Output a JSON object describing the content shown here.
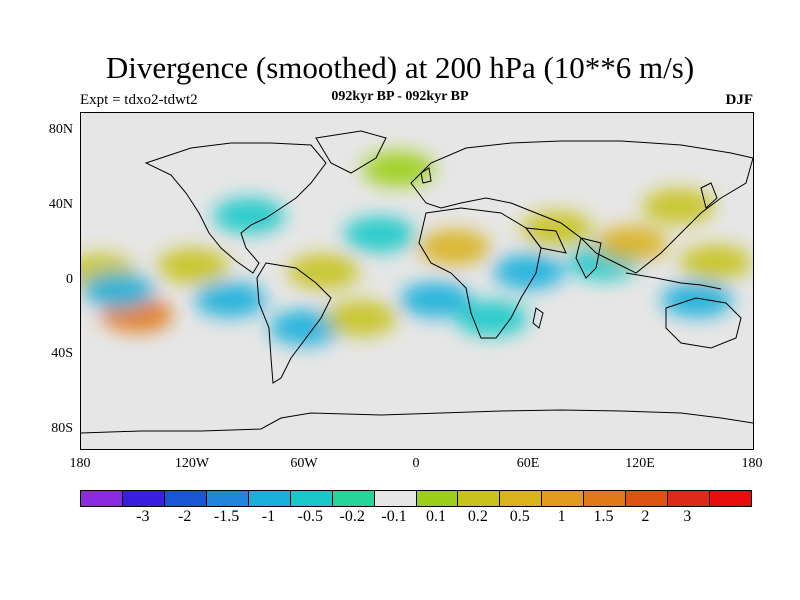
{
  "title": "Divergence (smoothed) at 200 hPa (10**6 m/s)",
  "experiment": "Expt = tdxo2-tdwt2",
  "period": "092kyr BP - 092kyr BP",
  "season": "DJF",
  "map": {
    "projection": "cylindrical-equidistant",
    "lon_range": [
      -180,
      180
    ],
    "lat_range": [
      -90,
      90
    ],
    "y_ticks": [
      {
        "label": "80N",
        "lat": 80
      },
      {
        "label": "40N",
        "lat": 40
      },
      {
        "label": "0",
        "lat": 0
      },
      {
        "label": "40S",
        "lat": -40
      },
      {
        "label": "80S",
        "lat": -80
      }
    ],
    "x_ticks": [
      {
        "label": "180",
        "lon": -180
      },
      {
        "label": "120W",
        "lon": -120
      },
      {
        "label": "60W",
        "lon": -60
      },
      {
        "label": "0",
        "lon": 0
      },
      {
        "label": "60E",
        "lon": 60
      },
      {
        "label": "120E",
        "lon": 120
      },
      {
        "label": "180",
        "lon": 180
      }
    ],
    "background_color": "#e6e6e6",
    "coastline_color": "#000000"
  },
  "colorbar": {
    "colors": [
      "#8a2be2",
      "#3a1ee0",
      "#1a55d6",
      "#1f86dc",
      "#1ab0dc",
      "#19c9c9",
      "#25d59a",
      "#e6e6e6",
      "#9ccf1a",
      "#c8c31c",
      "#d9b31c",
      "#e39b1c",
      "#e07a14",
      "#df5212",
      "#dd2a1a",
      "#e80e0e"
    ],
    "labels": [
      "-3",
      "-2",
      "-1.5",
      "-1",
      "-0.5",
      "-0.2",
      "-0.1",
      "0.1",
      "0.2",
      "0.5",
      "1",
      "1.5",
      "2",
      "3"
    ]
  },
  "chart_data": {
    "type": "heatmap",
    "title": "Divergence (smoothed) at 200 hPa (10**6 m/s)",
    "xlim": [
      -180,
      180
    ],
    "ylim": [
      -90,
      90
    ],
    "levels": [
      -3,
      -2,
      -1.5,
      -1,
      -0.5,
      -0.2,
      -0.1,
      0.1,
      0.2,
      0.5,
      1,
      1.5,
      2,
      3
    ],
    "blobs": [
      {
        "lon": -150,
        "lat": -18,
        "level": 2
      },
      {
        "lon": -170,
        "lat": 5,
        "level": 0.5
      },
      {
        "lon": -160,
        "lat": -5,
        "level": -0.5
      },
      {
        "lon": -120,
        "lat": 8,
        "level": 0.5
      },
      {
        "lon": -100,
        "lat": -10,
        "level": -0.5
      },
      {
        "lon": -90,
        "lat": 35,
        "level": -0.2
      },
      {
        "lon": -60,
        "lat": -25,
        "level": -0.5
      },
      {
        "lon": -50,
        "lat": 5,
        "level": 0.5
      },
      {
        "lon": -30,
        "lat": -20,
        "level": 0.5
      },
      {
        "lon": -20,
        "lat": 25,
        "level": -0.2
      },
      {
        "lon": 10,
        "lat": -10,
        "level": -0.5
      },
      {
        "lon": 20,
        "lat": 18,
        "level": 1
      },
      {
        "lon": 40,
        "lat": -20,
        "level": -0.2
      },
      {
        "lon": 60,
        "lat": 5,
        "level": -0.5
      },
      {
        "lon": 75,
        "lat": 28,
        "level": 0.5
      },
      {
        "lon": 100,
        "lat": 10,
        "level": -0.2
      },
      {
        "lon": 115,
        "lat": 20,
        "level": 1
      },
      {
        "lon": 150,
        "lat": -10,
        "level": -0.5
      },
      {
        "lon": 140,
        "lat": 40,
        "level": 0.5
      },
      {
        "lon": 160,
        "lat": 10,
        "level": 0.5
      },
      {
        "lon": -10,
        "lat": 60,
        "level": 0.2
      }
    ]
  }
}
